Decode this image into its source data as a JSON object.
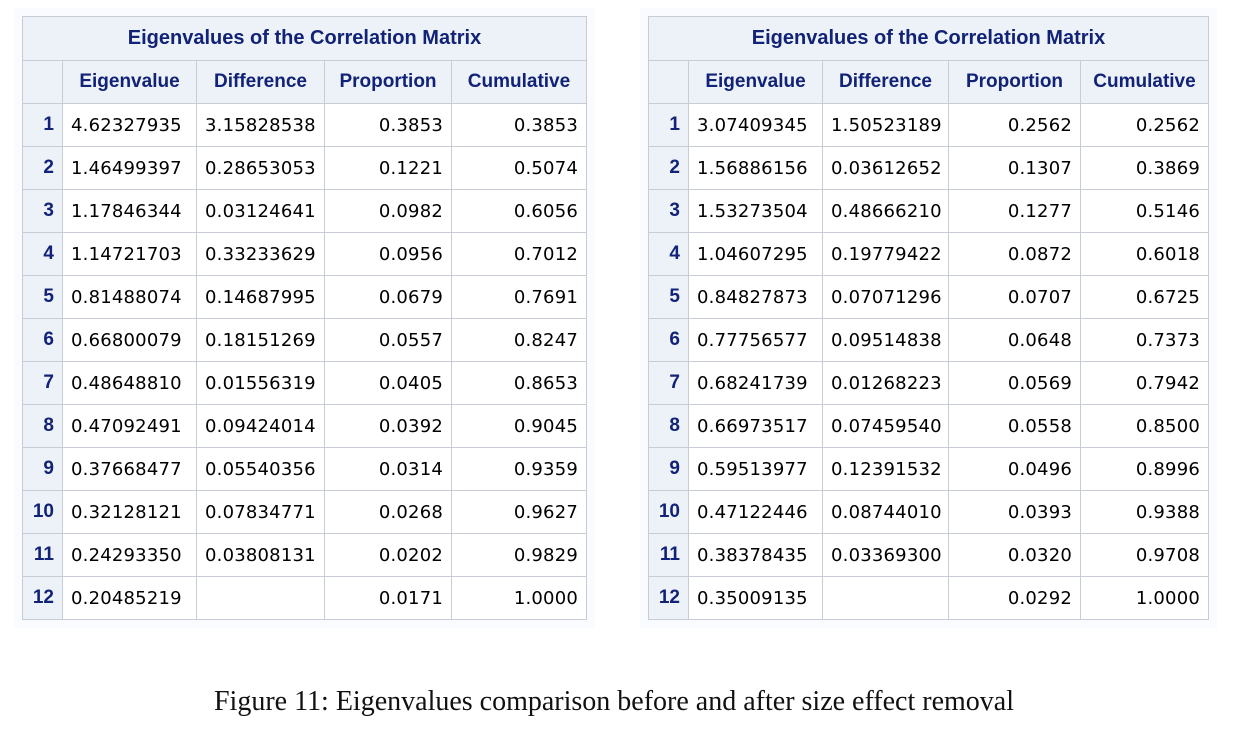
{
  "tables": [
    {
      "title": "Eigenvalues of the Correlation Matrix",
      "columns": [
        "Eigenvalue",
        "Difference",
        "Proportion",
        "Cumulative"
      ],
      "rows": [
        {
          "n": "1",
          "eigenvalue": "4.62327935",
          "difference": "3.15828538",
          "proportion": "0.3853",
          "cumulative": "0.3853"
        },
        {
          "n": "2",
          "eigenvalue": "1.46499397",
          "difference": "0.28653053",
          "proportion": "0.1221",
          "cumulative": "0.5074"
        },
        {
          "n": "3",
          "eigenvalue": "1.17846344",
          "difference": "0.03124641",
          "proportion": "0.0982",
          "cumulative": "0.6056"
        },
        {
          "n": "4",
          "eigenvalue": "1.14721703",
          "difference": "0.33233629",
          "proportion": "0.0956",
          "cumulative": "0.7012"
        },
        {
          "n": "5",
          "eigenvalue": "0.81488074",
          "difference": "0.14687995",
          "proportion": "0.0679",
          "cumulative": "0.7691"
        },
        {
          "n": "6",
          "eigenvalue": "0.66800079",
          "difference": "0.18151269",
          "proportion": "0.0557",
          "cumulative": "0.8247"
        },
        {
          "n": "7",
          "eigenvalue": "0.48648810",
          "difference": "0.01556319",
          "proportion": "0.0405",
          "cumulative": "0.8653"
        },
        {
          "n": "8",
          "eigenvalue": "0.47092491",
          "difference": "0.09424014",
          "proportion": "0.0392",
          "cumulative": "0.9045"
        },
        {
          "n": "9",
          "eigenvalue": "0.37668477",
          "difference": "0.05540356",
          "proportion": "0.0314",
          "cumulative": "0.9359"
        },
        {
          "n": "10",
          "eigenvalue": "0.32128121",
          "difference": "0.07834771",
          "proportion": "0.0268",
          "cumulative": "0.9627"
        },
        {
          "n": "11",
          "eigenvalue": "0.24293350",
          "difference": "0.03808131",
          "proportion": "0.0202",
          "cumulative": "0.9829"
        },
        {
          "n": "12",
          "eigenvalue": "0.20485219",
          "difference": "",
          "proportion": "0.0171",
          "cumulative": "1.0000"
        }
      ]
    },
    {
      "title": "Eigenvalues of the Correlation Matrix",
      "columns": [
        "Eigenvalue",
        "Difference",
        "Proportion",
        "Cumulative"
      ],
      "rows": [
        {
          "n": "1",
          "eigenvalue": "3.07409345",
          "difference": "1.50523189",
          "proportion": "0.2562",
          "cumulative": "0.2562"
        },
        {
          "n": "2",
          "eigenvalue": "1.56886156",
          "difference": "0.03612652",
          "proportion": "0.1307",
          "cumulative": "0.3869"
        },
        {
          "n": "3",
          "eigenvalue": "1.53273504",
          "difference": "0.48666210",
          "proportion": "0.1277",
          "cumulative": "0.5146"
        },
        {
          "n": "4",
          "eigenvalue": "1.04607295",
          "difference": "0.19779422",
          "proportion": "0.0872",
          "cumulative": "0.6018"
        },
        {
          "n": "5",
          "eigenvalue": "0.84827873",
          "difference": "0.07071296",
          "proportion": "0.0707",
          "cumulative": "0.6725"
        },
        {
          "n": "6",
          "eigenvalue": "0.77756577",
          "difference": "0.09514838",
          "proportion": "0.0648",
          "cumulative": "0.7373"
        },
        {
          "n": "7",
          "eigenvalue": "0.68241739",
          "difference": "0.01268223",
          "proportion": "0.0569",
          "cumulative": "0.7942"
        },
        {
          "n": "8",
          "eigenvalue": "0.66973517",
          "difference": "0.07459540",
          "proportion": "0.0558",
          "cumulative": "0.8500"
        },
        {
          "n": "9",
          "eigenvalue": "0.59513977",
          "difference": "0.12391532",
          "proportion": "0.0496",
          "cumulative": "0.8996"
        },
        {
          "n": "10",
          "eigenvalue": "0.47122446",
          "difference": "0.08744010",
          "proportion": "0.0393",
          "cumulative": "0.9388"
        },
        {
          "n": "11",
          "eigenvalue": "0.38378435",
          "difference": "0.03369300",
          "proportion": "0.0320",
          "cumulative": "0.9708"
        },
        {
          "n": "12",
          "eigenvalue": "0.35009135",
          "difference": "",
          "proportion": "0.0292",
          "cumulative": "1.0000"
        }
      ]
    }
  ],
  "caption": "Figure 11: Eigenvalues comparison before and after size effect removal",
  "colors": {
    "header_text": "#112277",
    "header_bg": "#edf2f9",
    "border": "#c8ccd6"
  }
}
